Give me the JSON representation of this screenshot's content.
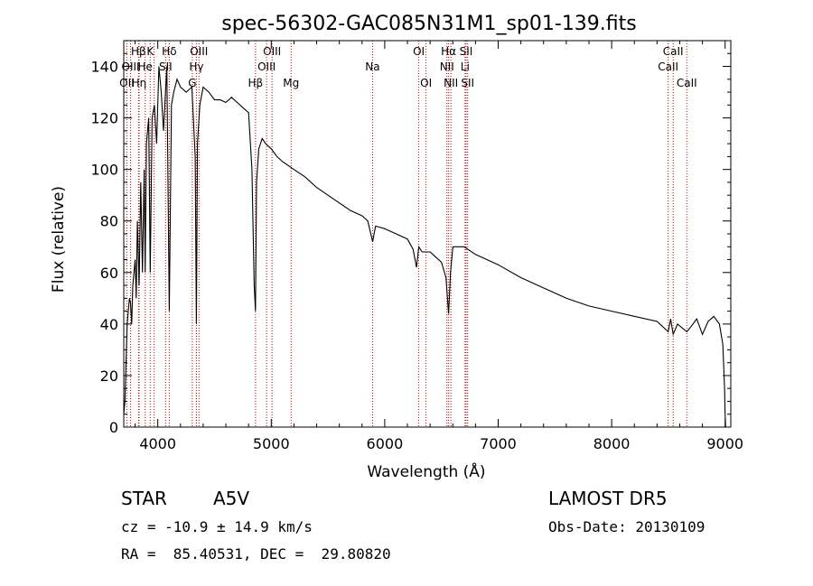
{
  "chart_data": {
    "type": "line",
    "title": "spec-56302-GAC085N31M1_sp01-139.fits",
    "xlabel": "Wavelength (Å)",
    "ylabel": "Flux (relative)",
    "xlim": [
      3700,
      9050
    ],
    "ylim": [
      0,
      150
    ],
    "xticks": [
      4000,
      5000,
      6000,
      7000,
      8000,
      9000
    ],
    "yticks": [
      0,
      20,
      40,
      60,
      80,
      100,
      120,
      140
    ],
    "grid": false,
    "series": [
      {
        "x": [
          3700,
          3710,
          3720,
          3730,
          3740,
          3750,
          3760,
          3770,
          3780,
          3790,
          3800,
          3810,
          3820,
          3835,
          3850,
          3865,
          3880,
          3889,
          3900,
          3920,
          3933,
          3950,
          3970,
          3990,
          4010,
          4030,
          4050,
          4080,
          4101,
          4120,
          4140,
          4170,
          4200,
          4250,
          4300,
          4330,
          4340,
          4350,
          4370,
          4400,
          4450,
          4500,
          4550,
          4600,
          4650,
          4700,
          4750,
          4800,
          4830,
          4850,
          4861,
          4870,
          4890,
          4920,
          4950,
          5000,
          5050,
          5100,
          5200,
          5300,
          5400,
          5500,
          5600,
          5700,
          5800,
          5850,
          5893,
          5920,
          6000,
          6100,
          6200,
          6250,
          6280,
          6300,
          6330,
          6400,
          6450,
          6500,
          6540,
          6563,
          6580,
          6600,
          6650,
          6700,
          6800,
          7000,
          7200,
          7400,
          7600,
          7800,
          8000,
          8200,
          8400,
          8498,
          8520,
          8542,
          8580,
          8662,
          8700,
          8750,
          8800,
          8850,
          8900,
          8950,
          8980,
          8995,
          9000,
          9005
        ],
        "y": [
          5,
          10,
          25,
          40,
          45,
          50,
          48,
          40,
          55,
          60,
          65,
          50,
          80,
          55,
          95,
          60,
          100,
          60,
          110,
          120,
          60,
          120,
          125,
          110,
          140,
          130,
          115,
          140,
          45,
          125,
          130,
          135,
          132,
          130,
          132,
          105,
          40,
          110,
          125,
          132,
          130,
          127,
          127,
          126,
          128,
          126,
          124,
          122,
          100,
          55,
          45,
          95,
          108,
          112,
          110,
          108,
          105,
          103,
          100,
          97,
          93,
          90,
          87,
          84,
          82,
          80,
          72,
          78,
          77,
          75,
          73,
          69,
          62,
          70,
          68,
          68,
          66,
          64,
          58,
          44,
          60,
          70,
          70,
          70,
          67,
          63,
          58,
          54,
          50,
          47,
          45,
          43,
          41,
          37,
          42,
          36,
          40,
          37,
          39,
          42,
          36,
          41,
          43,
          40,
          32,
          15,
          5,
          0
        ]
      }
    ],
    "annotations": [
      {
        "label": "Hβ",
        "x": 3830,
        "row": 0
      },
      {
        "label": "K",
        "x": 3933,
        "row": 0
      },
      {
        "label": "Hδ",
        "x": 4101,
        "row": 0
      },
      {
        "label": "OIII",
        "x": 4363,
        "row": 0
      },
      {
        "label": "OIII",
        "x": 5007,
        "row": 0
      },
      {
        "label": "OI",
        "x": 6300,
        "row": 0
      },
      {
        "label": "Hα",
        "x": 6563,
        "row": 0
      },
      {
        "label": "SII",
        "x": 6717,
        "row": 0
      },
      {
        "label": "CaII",
        "x": 8542,
        "row": 0
      },
      {
        "label": "OIII",
        "x": 3760,
        "row": 1
      },
      {
        "label": "He",
        "x": 3889,
        "row": 1
      },
      {
        "label": "SII",
        "x": 4069,
        "row": 1
      },
      {
        "label": "Hγ",
        "x": 4340,
        "row": 1
      },
      {
        "label": "OIII",
        "x": 4959,
        "row": 1
      },
      {
        "label": "Na",
        "x": 5893,
        "row": 1
      },
      {
        "label": "NII",
        "x": 6548,
        "row": 1
      },
      {
        "label": "Li",
        "x": 6708,
        "row": 1
      },
      {
        "label": "CaII",
        "x": 8498,
        "row": 1
      },
      {
        "label": "OII",
        "x": 3727,
        "row": 2
      },
      {
        "label": "Hη",
        "x": 3835,
        "row": 2
      },
      {
        "label": "G",
        "x": 4304,
        "row": 2
      },
      {
        "label": "Hβ",
        "x": 4861,
        "row": 2
      },
      {
        "label": "Mg",
        "x": 5175,
        "row": 2
      },
      {
        "label": "OI",
        "x": 6364,
        "row": 2
      },
      {
        "label": "NII",
        "x": 6583,
        "row": 2
      },
      {
        "label": "SII",
        "x": 6731,
        "row": 2
      },
      {
        "label": "CaII",
        "x": 8662,
        "row": 2
      }
    ],
    "line_marker_wavelengths": [
      3727,
      3760,
      3830,
      3835,
      3889,
      3933,
      3968,
      4069,
      4101,
      4304,
      4340,
      4363,
      4861,
      4959,
      5007,
      5175,
      5893,
      6300,
      6364,
      6548,
      6563,
      6583,
      6708,
      6717,
      6731,
      8498,
      8542,
      8662
    ]
  },
  "info": {
    "object_class": "STAR",
    "subclass": "A5V",
    "survey": "LAMOST DR5",
    "cz_text": "cz = -10.9 ± 14.9 km/s",
    "obs_date": "Obs-Date: 20130109",
    "coords": "RA =  85.40531, DEC =  29.80820"
  }
}
